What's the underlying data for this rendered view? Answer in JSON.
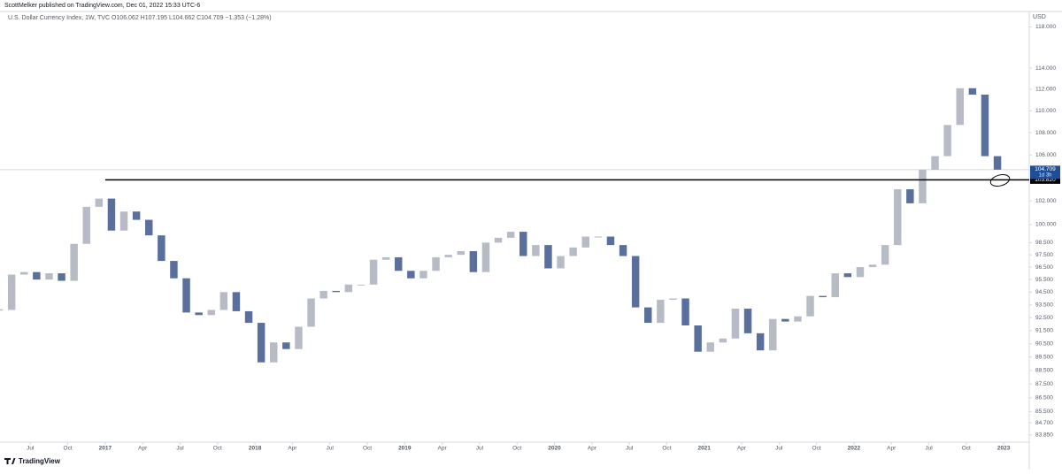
{
  "header": {
    "publisher": "ScottMelker published on TradingView.com, Dec 01, 2022 15:33 UTC-6"
  },
  "footer": {
    "brand": "TradingView"
  },
  "chart_data": {
    "type": "candlestick",
    "legend_text": "U.S. Dollar Currency Index, 1W, TVC  O106.062  H107.195  L104.662  C104.709  −1.353 (−1.28%)",
    "y_unit": "USD",
    "log": true,
    "grid": false,
    "up_color": "#b7bbc6",
    "down_color": "#5a6f9c",
    "x": [
      "2016-04",
      "2016-05",
      "2016-06",
      "2016-07",
      "2016-08",
      "2016-09",
      "2016-10",
      "2016-11",
      "2016-12",
      "2017-01",
      "2017-02",
      "2017-03",
      "2017-04",
      "2017-05",
      "2017-06",
      "2017-07",
      "2017-08",
      "2017-09",
      "2017-10",
      "2017-11",
      "2017-12",
      "2018-01",
      "2018-02",
      "2018-03",
      "2018-04",
      "2018-05",
      "2018-06",
      "2018-07",
      "2018-08",
      "2018-09",
      "2018-10",
      "2018-11",
      "2018-12",
      "2019-01",
      "2019-02",
      "2019-03",
      "2019-04",
      "2019-05",
      "2019-06",
      "2019-07",
      "2019-08",
      "2019-09",
      "2019-10",
      "2019-11",
      "2019-12",
      "2020-01",
      "2020-02",
      "2020-03",
      "2020-04",
      "2020-05",
      "2020-06",
      "2020-07",
      "2020-08",
      "2020-09",
      "2020-10",
      "2020-11",
      "2020-12",
      "2021-01",
      "2021-02",
      "2021-03",
      "2021-04",
      "2021-05",
      "2021-06",
      "2021-07",
      "2021-08",
      "2021-09",
      "2021-10",
      "2021-11",
      "2021-12",
      "2022-01",
      "2022-02",
      "2022-03",
      "2022-04",
      "2022-05",
      "2022-06",
      "2022-07",
      "2022-08",
      "2022-09",
      "2022-10",
      "2022-11",
      "2022-12"
    ],
    "values": [
      93.1,
      95.9,
      96.1,
      95.5,
      96.0,
      95.4,
      98.4,
      101.5,
      102.2,
      99.5,
      101.1,
      100.4,
      99.1,
      97.0,
      95.6,
      92.9,
      92.7,
      93.1,
      94.5,
      93.0,
      92.1,
      89.1,
      90.6,
      90.1,
      91.8,
      94.0,
      94.6,
      94.5,
      95.1,
      95.1,
      97.1,
      97.3,
      96.2,
      95.6,
      96.2,
      97.3,
      97.5,
      97.8,
      96.1,
      98.5,
      98.9,
      99.4,
      97.4,
      98.3,
      96.4,
      97.4,
      98.1,
      99.0,
      99.0,
      98.3,
      97.4,
      93.3,
      92.1,
      93.9,
      94.0,
      91.9,
      89.9,
      90.6,
      90.9,
      93.2,
      91.3,
      90.0,
      92.4,
      92.2,
      92.6,
      94.2,
      94.1,
      96.0,
      95.7,
      96.5,
      96.7,
      98.3,
      103.0,
      101.8,
      104.7,
      105.9,
      108.7,
      112.1,
      111.5,
      105.9,
      104.709
    ],
    "xticks": [
      {
        "value": "2016-07",
        "label": "Jul"
      },
      {
        "value": "2016-10",
        "label": "Oct"
      },
      {
        "value": "2017-01",
        "label": "2017"
      },
      {
        "value": "2017-04",
        "label": "Apr"
      },
      {
        "value": "2017-07",
        "label": "Jul"
      },
      {
        "value": "2017-10",
        "label": "Oct"
      },
      {
        "value": "2018-01",
        "label": "2018"
      },
      {
        "value": "2018-04",
        "label": "Apr"
      },
      {
        "value": "2018-07",
        "label": "Jul"
      },
      {
        "value": "2018-10",
        "label": "Oct"
      },
      {
        "value": "2019-01",
        "label": "2019"
      },
      {
        "value": "2019-04",
        "label": "Apr"
      },
      {
        "value": "2019-07",
        "label": "Jul"
      },
      {
        "value": "2019-10",
        "label": "Oct"
      },
      {
        "value": "2020-01",
        "label": "2020"
      },
      {
        "value": "2020-04",
        "label": "Apr"
      },
      {
        "value": "2020-07",
        "label": "Jul"
      },
      {
        "value": "2020-10",
        "label": "Oct"
      },
      {
        "value": "2021-01",
        "label": "2021"
      },
      {
        "value": "2021-04",
        "label": "Apr"
      },
      {
        "value": "2021-07",
        "label": "Jul"
      },
      {
        "value": "2021-10",
        "label": "Oct"
      },
      {
        "value": "2022-01",
        "label": "2022"
      },
      {
        "value": "2022-04",
        "label": "Apr"
      },
      {
        "value": "2022-07",
        "label": "Jul"
      },
      {
        "value": "2022-10",
        "label": "Oct"
      },
      {
        "value": "2023-01",
        "label": "2023"
      }
    ],
    "ylim": [
      83.34,
      119.54
    ],
    "yticks": [
      {
        "value": 118,
        "label": "118.000"
      },
      {
        "value": 114,
        "label": "114.000"
      },
      {
        "value": 112,
        "label": "112.000"
      },
      {
        "value": 110,
        "label": "110.000"
      },
      {
        "value": 108,
        "label": "108.000"
      },
      {
        "value": 106,
        "label": "106.000"
      },
      {
        "value": 102,
        "label": "102.000"
      },
      {
        "value": 100,
        "label": "100.000"
      },
      {
        "value": 98.5,
        "label": "98.500"
      },
      {
        "value": 97.5,
        "label": "97.500"
      },
      {
        "value": 96.5,
        "label": "96.500"
      },
      {
        "value": 95.5,
        "label": "95.500"
      },
      {
        "value": 94.5,
        "label": "94.500"
      },
      {
        "value": 93.5,
        "label": "93.500"
      },
      {
        "value": 92.5,
        "label": "92.500"
      },
      {
        "value": 91.5,
        "label": "91.500"
      },
      {
        "value": 90.5,
        "label": "90.500"
      },
      {
        "value": 89.5,
        "label": "89.500"
      },
      {
        "value": 88.5,
        "label": "88.500"
      },
      {
        "value": 87.5,
        "label": "87.500"
      },
      {
        "value": 86.5,
        "label": "86.500"
      },
      {
        "value": 85.5,
        "label": "85.500"
      },
      {
        "value": 84.7,
        "label": "84.700"
      },
      {
        "value": 83.85,
        "label": "83.850"
      }
    ],
    "support_line": {
      "value": 103.82,
      "label": "103.820",
      "from": "2017-01",
      "color": "#000000"
    },
    "last_price": {
      "value": 104.709,
      "label": "104.709",
      "countdown": "1d 3h",
      "color": "#1f4e98"
    }
  }
}
